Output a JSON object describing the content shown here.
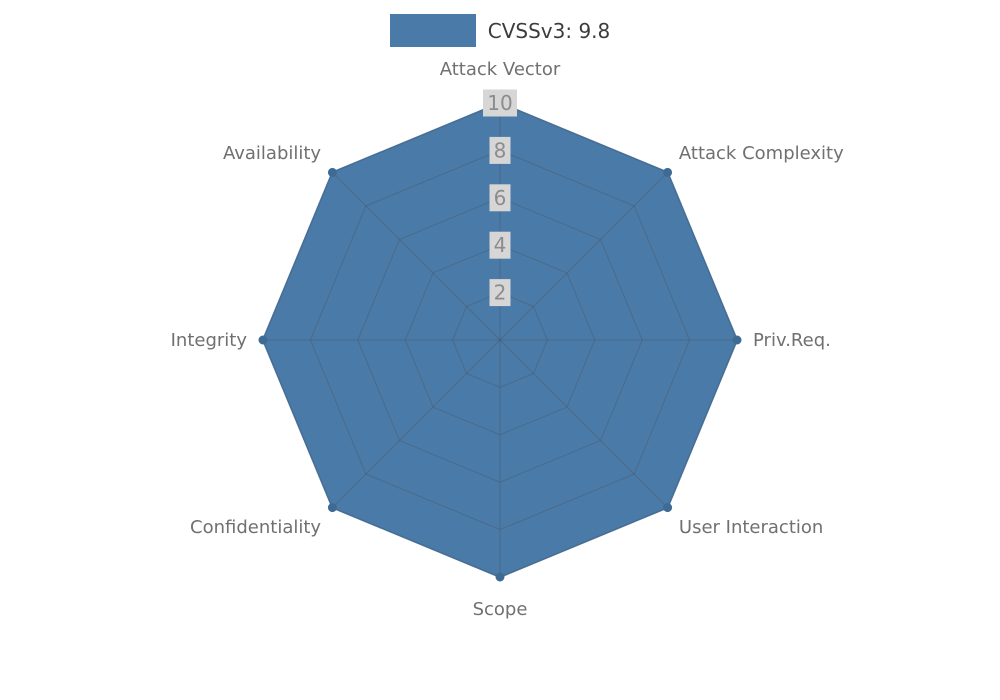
{
  "legend": {
    "label": "CVSSv3: 9.8"
  },
  "chart_data": {
    "type": "radar",
    "title": "",
    "categories": [
      "Attack Vector",
      "Attack Complexity",
      "Priv.Req.",
      "User Interaction",
      "Scope",
      "Confidentiality",
      "Integrity",
      "Availability"
    ],
    "series": [
      {
        "name": "CVSSv3: 9.8",
        "values": [
          10,
          10,
          10,
          10,
          10,
          10,
          10,
          10
        ]
      }
    ],
    "ticks": [
      2,
      4,
      6,
      8,
      10
    ],
    "rlim": [
      0,
      10
    ],
    "grid": true,
    "legend_position": "top-center",
    "colors": {
      "fill": "#4a7aa8",
      "marker": "#3e6b94",
      "grid": "#4a4a4a",
      "axis_label": "#707070",
      "tick_text": "#8c8c8c",
      "tick_bg": "#d6d6d6",
      "legend_text": "#3c3c3c",
      "background": "#ffffff"
    }
  }
}
